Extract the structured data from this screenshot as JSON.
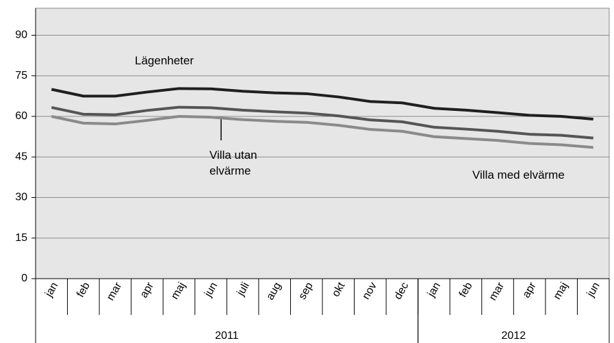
{
  "chart_data": {
    "type": "line",
    "categories": [
      "jan",
      "feb",
      "mar",
      "apr",
      "maj",
      "jun",
      "juli",
      "aug",
      "sep",
      "okt",
      "nov",
      "dec",
      "jan",
      "feb",
      "mar",
      "apr",
      "maj",
      "jun"
    ],
    "category_groups": [
      {
        "label": "2011",
        "count": 12
      },
      {
        "label": "2012",
        "count": 6
      }
    ],
    "series": [
      {
        "name": "Lägenheter",
        "color": "#1f1f1f",
        "values": [
          70,
          67.5,
          67.5,
          69,
          70.3,
          70.2,
          69.3,
          68.7,
          68.4,
          67.2,
          65.5,
          65,
          63,
          62.3,
          61.4,
          60.4,
          60,
          59
        ]
      },
      {
        "name": "Villa utan elvärme",
        "color": "#555555",
        "values": [
          63.3,
          60.8,
          60.6,
          62.2,
          63.4,
          63.2,
          62.3,
          61.7,
          61.2,
          60.2,
          58.7,
          58,
          56,
          55.3,
          54.5,
          53.4,
          53,
          52
        ]
      },
      {
        "name": "Villa med elvärme",
        "color": "#8a8a8a",
        "values": [
          60,
          57.5,
          57.2,
          58.5,
          60,
          59.7,
          58.8,
          58.2,
          57.8,
          56.7,
          55.2,
          54.5,
          52.5,
          51.8,
          51.1,
          50,
          49.5,
          48.5
        ]
      }
    ],
    "ylim": [
      0,
      100
    ],
    "yticks": [
      0,
      15,
      30,
      45,
      60,
      75,
      90
    ],
    "grid": true
  }
}
